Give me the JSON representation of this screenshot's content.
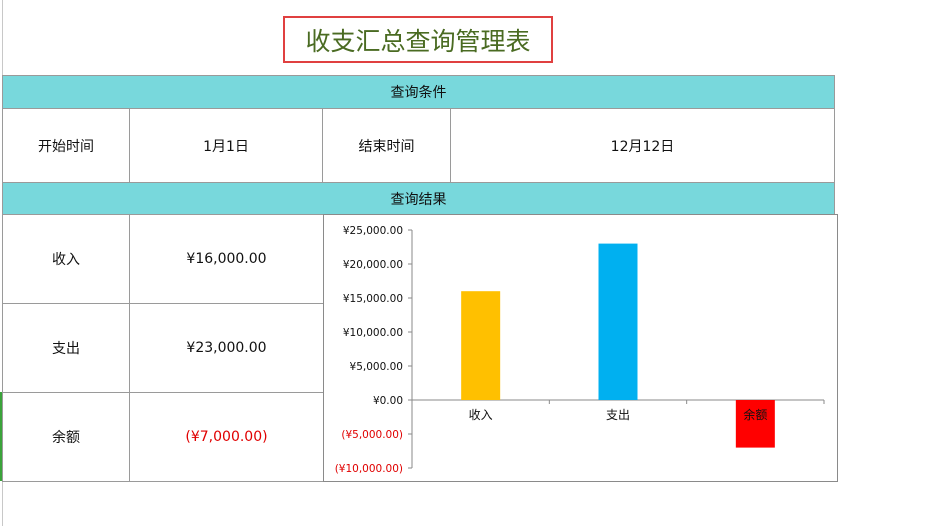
{
  "title": "收支汇总查询管理表",
  "query_conditions": {
    "header": "查询条件",
    "start_label": "开始时间",
    "start_value": "1月1日",
    "end_label": "结束时间",
    "end_value": "12月12日"
  },
  "query_results": {
    "header": "查询结果",
    "rows": [
      {
        "label": "收入",
        "value": "¥16,000.00"
      },
      {
        "label": "支出",
        "value": "¥23,000.00"
      },
      {
        "label": "余额",
        "value": "(¥7,000.00)"
      }
    ]
  },
  "colors": {
    "header_bg": "#78d8dc",
    "title_text": "#4a6b22",
    "title_border": "#e04040",
    "negative": "#e00000"
  },
  "chart_data": {
    "type": "bar",
    "categories": [
      "收入",
      "支出",
      "余额"
    ],
    "values": [
      16000,
      23000,
      -7000
    ],
    "bar_colors": [
      "#ffc000",
      "#00b0f0",
      "#ff0000"
    ],
    "ylim": [
      -10000,
      25000
    ],
    "yticks": [
      25000,
      20000,
      15000,
      10000,
      5000,
      0,
      -5000,
      -10000
    ],
    "ytick_labels": [
      "¥25,000.00",
      "¥20,000.00",
      "¥15,000.00",
      "¥10,000.00",
      "¥5,000.00",
      "¥0.00",
      "(¥5,000.00)",
      "(¥10,000.00)"
    ],
    "grid": false,
    "legend": "none"
  }
}
